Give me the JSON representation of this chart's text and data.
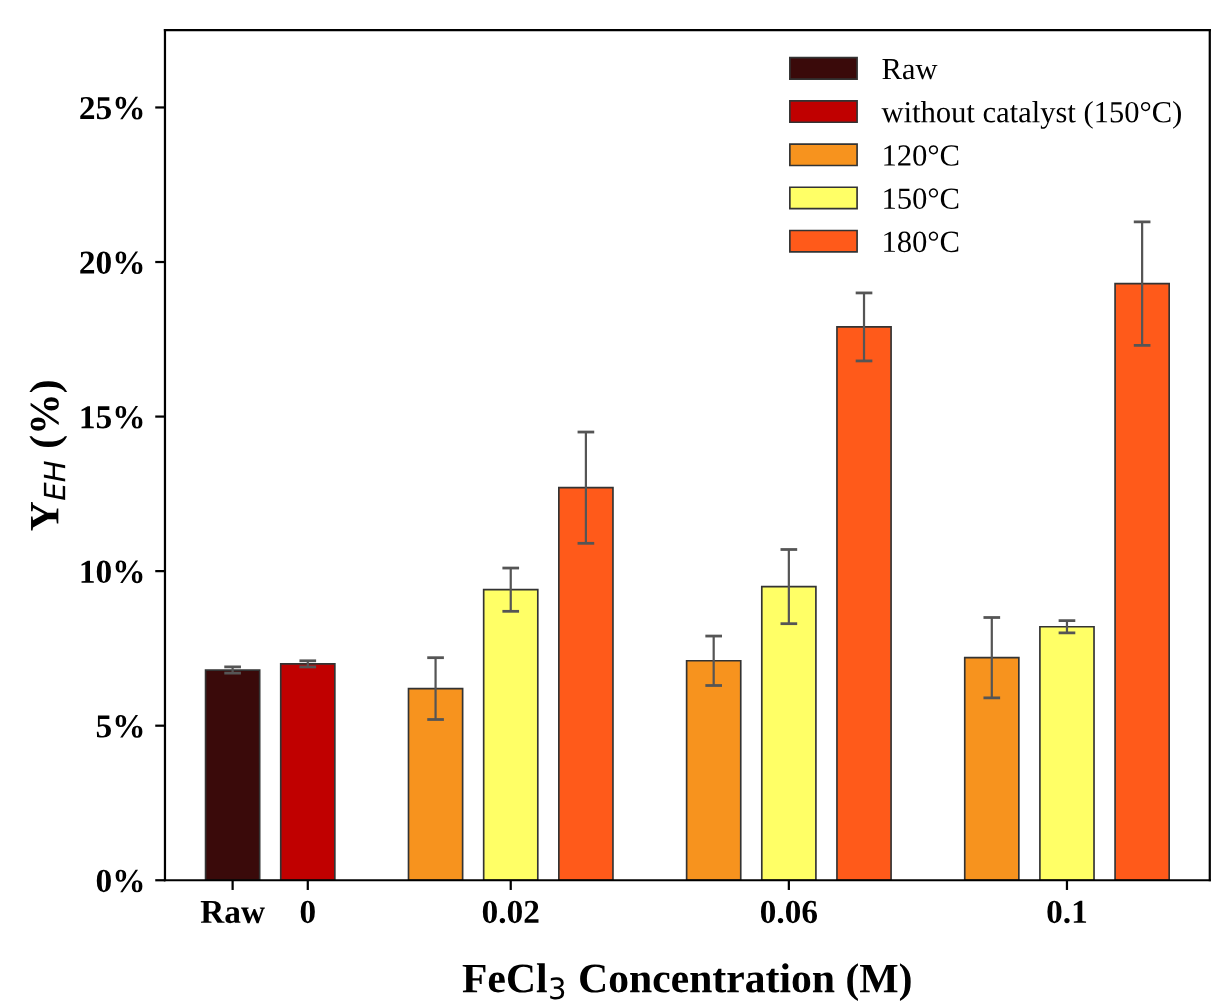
{
  "chart_data": {
    "type": "bar",
    "xlabel": "FeCl$_{3}$ Concentration (M)",
    "ylabel": "Y$_{EH}$ (%)",
    "categories": [
      "Raw",
      "0",
      "0.02",
      "0.06",
      "0.1"
    ],
    "series": [
      {
        "name": "Raw",
        "color": "#3a0a0a",
        "values": [
          6.8,
          null,
          null,
          null,
          null
        ],
        "errors": [
          0.1,
          null,
          null,
          null,
          null
        ]
      },
      {
        "name": "without catalyst (150°C)",
        "color": "#c00000",
        "values": [
          null,
          7.0,
          null,
          null,
          null
        ],
        "errors": [
          null,
          0.1,
          null,
          null,
          null
        ]
      },
      {
        "name": "120°C",
        "color": "#f7931e",
        "values": [
          null,
          null,
          6.2,
          7.1,
          7.2
        ],
        "errors": [
          null,
          null,
          1.0,
          0.8,
          1.3
        ]
      },
      {
        "name": "150°C",
        "color": "#ffff66",
        "values": [
          null,
          null,
          9.4,
          9.5,
          8.2
        ],
        "errors": [
          null,
          null,
          0.7,
          1.2,
          0.2
        ]
      },
      {
        "name": "180°C",
        "color": "#ff5a1a",
        "values": [
          null,
          null,
          12.7,
          17.9,
          19.3
        ],
        "errors": [
          null,
          null,
          1.8,
          1.1,
          2.0
        ]
      }
    ],
    "ylim": [
      0,
      27.5
    ],
    "yticks": [
      {
        "value": 0,
        "label": "0%"
      },
      {
        "value": 5,
        "label": "5%"
      },
      {
        "value": 10,
        "label": "10%"
      },
      {
        "value": 15,
        "label": "15%"
      },
      {
        "value": 20,
        "label": "20%"
      },
      {
        "value": 25,
        "label": "25%"
      }
    ],
    "legend": "top right",
    "grid": false
  }
}
